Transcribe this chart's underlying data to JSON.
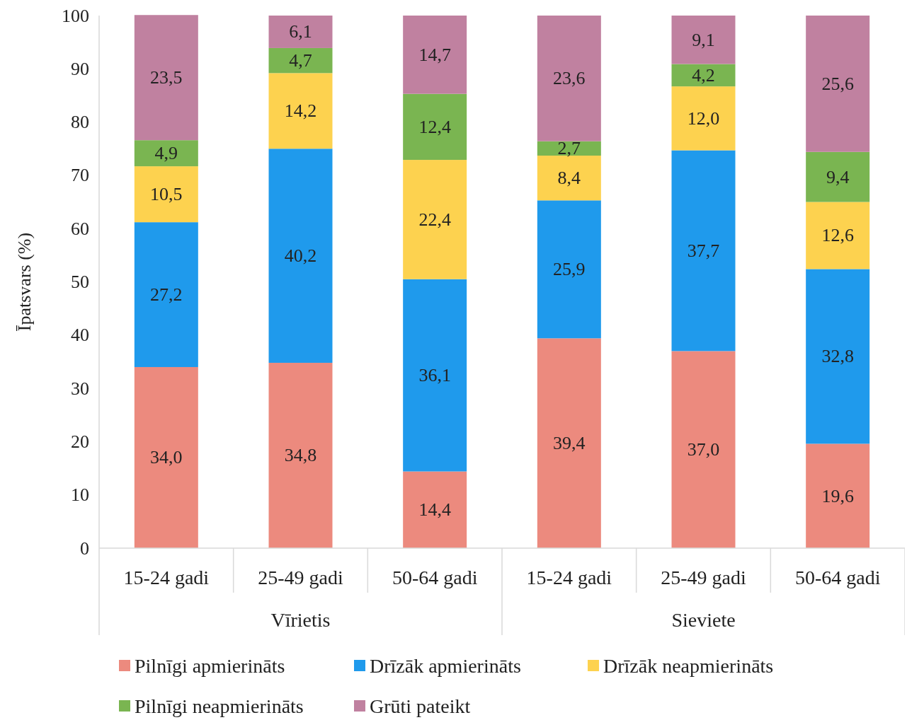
{
  "chart_data": {
    "type": "bar",
    "stacked": true,
    "ylabel": "Īpatsvars (%)",
    "categories": [
      "15-24 gadi",
      "25-49 gadi",
      "50-64 gadi",
      "15-24 gadi",
      "25-49 gadi",
      "50-64 gadi"
    ],
    "annotations": [
      "Vīrietis",
      "Sieviete"
    ],
    "ylim": [
      0,
      100
    ],
    "yticks": [
      0,
      10,
      20,
      30,
      40,
      50,
      60,
      70,
      80,
      90,
      100
    ],
    "grid": false,
    "legend": "bottom",
    "series": [
      {
        "name": "Pilnīgi apmierināts",
        "color": "#ec8a7e",
        "values": [
          34.0,
          34.8,
          14.4,
          39.4,
          37.0,
          19.6
        ],
        "value_labels": [
          "34,0",
          "34,8",
          "14,4",
          "39,4",
          "37,0",
          "19,6"
        ]
      },
      {
        "name": "Drīzāk apmierināts",
        "color": "#1f9aec",
        "values": [
          27.2,
          40.2,
          36.1,
          25.9,
          37.7,
          32.8
        ],
        "value_labels": [
          "27,2",
          "40,2",
          "36,1",
          "25,9",
          "37,7",
          "32,8"
        ]
      },
      {
        "name": "Drīzāk neapmierināts",
        "color": "#fdd24f",
        "values": [
          10.5,
          14.2,
          22.4,
          8.4,
          12.0,
          12.6
        ],
        "value_labels": [
          "10,5",
          "14,2",
          "22,4",
          "8,4",
          "12,0",
          "12,6"
        ]
      },
      {
        "name": "Pilnīgi neapmierināts",
        "color": "#7ab551",
        "values": [
          4.9,
          4.7,
          12.4,
          2.7,
          4.2,
          9.4
        ],
        "value_labels": [
          "4,9",
          "4,7",
          "12,4",
          "2,7",
          "4,2",
          "9,4"
        ]
      },
      {
        "name": "Grūti pateikt",
        "color": "#c081a0",
        "values": [
          23.5,
          6.1,
          14.7,
          23.6,
          9.1,
          25.6
        ],
        "value_labels": [
          "23,5",
          "6,1",
          "14,7",
          "23,6",
          "9,1",
          "25,6"
        ]
      }
    ]
  }
}
